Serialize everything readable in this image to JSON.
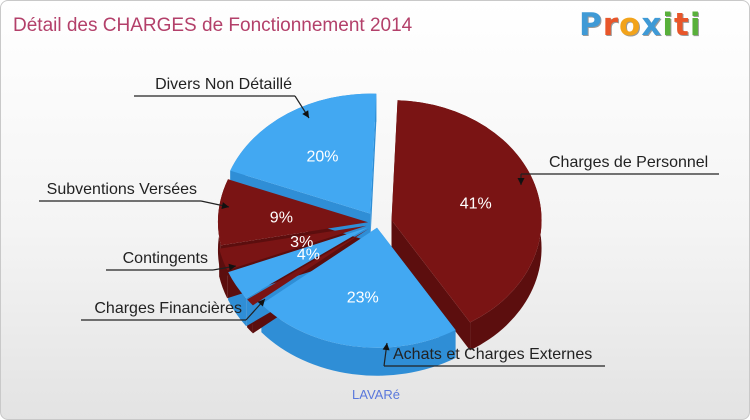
{
  "title": "Détail des CHARGES de Fonctionnement 2014",
  "logo": {
    "text": "Proxiti",
    "letter_colors": [
      "#3f9ad6",
      "#e8562a",
      "#f2a31b",
      "#3f9ad6",
      "#58b03a",
      "#e8562a",
      "#58b03a"
    ]
  },
  "footer": "LAVARé",
  "colors": {
    "blue_top": "#42a8f2",
    "blue_side": "#2f8ed6",
    "red_top": "#7a1414",
    "red_side": "#5c0e0e",
    "title": "#b3406a"
  },
  "chart_data": {
    "type": "pie",
    "title": "Détail des CHARGES de Fonctionnement 2014",
    "style": "3d-exploded",
    "slices": [
      {
        "label": "Charges de Personnel",
        "percent_label": "41%",
        "value": 41,
        "color": "red"
      },
      {
        "label": "Achats et Charges Externes",
        "percent_label": "23%",
        "value": 23,
        "color": "blue"
      },
      {
        "label": "Charges Financières",
        "percent_label": "",
        "value": 1,
        "color": "red"
      },
      {
        "label": "Contingents",
        "percent_label": "4%",
        "value": 4,
        "color": "blue"
      },
      {
        "label": "",
        "percent_label": "3%",
        "value": 3,
        "color": "red"
      },
      {
        "label": "Subventions Versées",
        "percent_label": "9%",
        "value": 9,
        "color": "red"
      },
      {
        "label": "Divers Non Détaillé",
        "percent_label": "20%",
        "value": 20,
        "color": "blue"
      }
    ]
  }
}
